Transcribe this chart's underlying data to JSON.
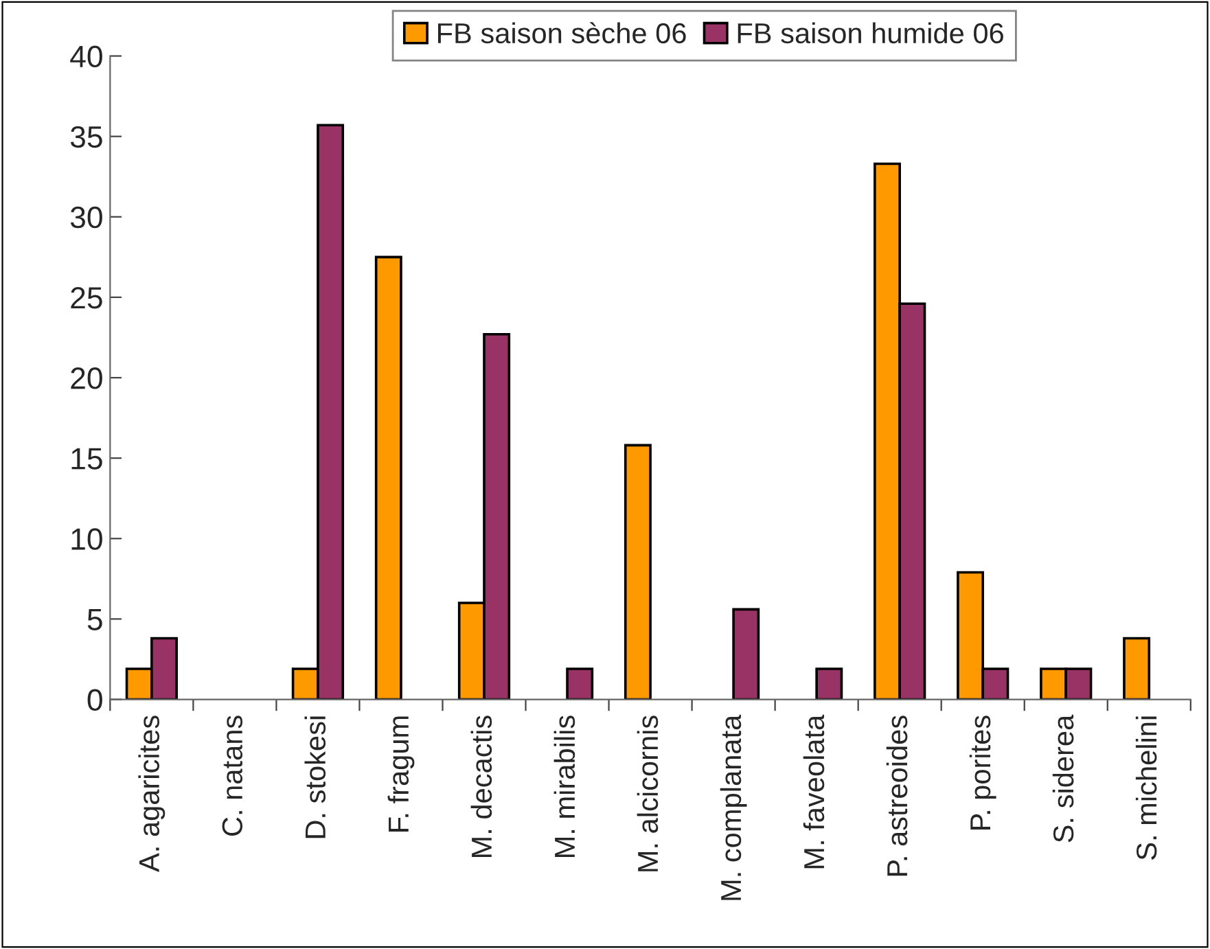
{
  "chart_data": {
    "type": "bar",
    "categories": [
      "A. agaricites",
      "C. natans",
      "D. stokesi",
      "F. fragum",
      "M. decactis",
      "M. mirabilis",
      "M. alcicornis",
      "M. complanata",
      "M. faveolata",
      "P. astreoides",
      "P. porites",
      "S. siderea",
      "S. michelini"
    ],
    "series": [
      {
        "name": "FB saison sèche 06",
        "color": "#ff9900",
        "values": [
          1.9,
          null,
          1.9,
          27.5,
          6.0,
          null,
          15.8,
          null,
          null,
          33.3,
          7.9,
          1.9,
          3.8
        ]
      },
      {
        "name": "FB saison humide 06",
        "color": "#993366",
        "values": [
          3.8,
          null,
          35.7,
          null,
          22.7,
          1.9,
          null,
          5.6,
          1.9,
          24.6,
          1.9,
          1.9,
          null
        ]
      }
    ],
    "ylim": [
      0,
      40
    ],
    "yticks": [
      0,
      5,
      10,
      15,
      20,
      25,
      30,
      35,
      40
    ],
    "grid": false,
    "legend": "top"
  }
}
